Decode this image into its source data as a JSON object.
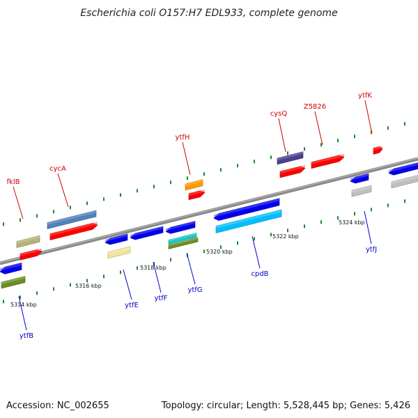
{
  "header": {
    "title": "Escherichia coli O157:H7 EDL933, complete genome"
  },
  "footer": {
    "accession": "Accession: NC_002655",
    "summary": "Topology: circular; Length: 5,528,445 bp; Genes: 5,426"
  },
  "colors": {
    "backbone": "#888888",
    "forward_label": "#cc0000",
    "reverse_label": "#0000cc",
    "tick": "#1a8c1a",
    "kbp_text": "#111111"
  },
  "genes_forward": [
    {
      "id": "fklB",
      "label": "fklB",
      "color": "#ff0000"
    },
    {
      "id": "cycA",
      "label": "cycA",
      "color": "#ff0000"
    },
    {
      "id": "ytfH",
      "label": "ytfH",
      "color": "#ff0000"
    },
    {
      "id": "cysQ",
      "label": "cysQ",
      "color": "#ff0000"
    },
    {
      "id": "Z5826",
      "label": "Z5826",
      "color": "#ff0000"
    },
    {
      "id": "ytfK",
      "label": "ytfK",
      "color": "#ff0000"
    }
  ],
  "genes_reverse": [
    {
      "id": "ytfB",
      "label": "ytfB",
      "color": "#0000ee"
    },
    {
      "id": "ytfE",
      "label": "ytfE",
      "color": "#0000ee"
    },
    {
      "id": "ytfF",
      "label": "ytfF",
      "color": "#0000ee"
    },
    {
      "id": "ytfG",
      "label": "ytfG",
      "color": "#0000ee"
    },
    {
      "id": "cpdB",
      "label": "cpdB",
      "color": "#0000ee"
    },
    {
      "id": "ytfJ",
      "label": "ytfJ",
      "color": "#0000ee"
    }
  ],
  "extra_feature_colors": [
    "#b5b27a",
    "#4f81bd",
    "#ff9900",
    "#4b3f8f",
    "#f2e69a",
    "#17c9c9",
    "#6b8e23",
    "#00bfff",
    "#c0c0c0"
  ],
  "kbp_labels": [
    "5314 kbp",
    "5316 kbp",
    "5318 kbp",
    "5320 kbp",
    "5322 kbp",
    "5324 kbp"
  ]
}
